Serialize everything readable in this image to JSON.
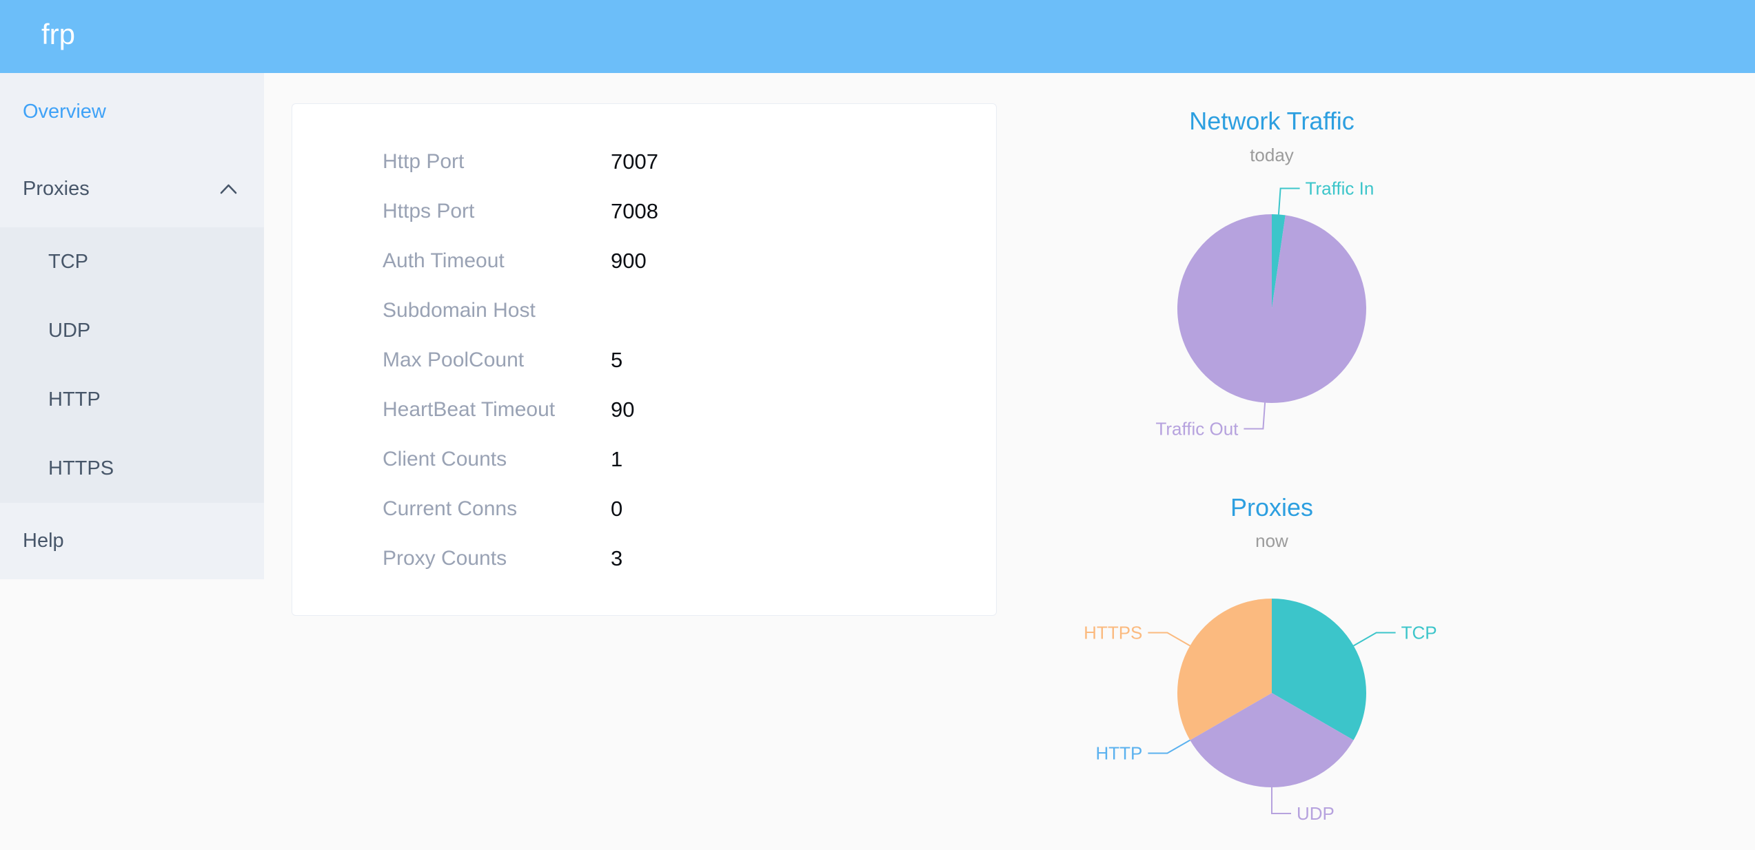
{
  "header": {
    "logo": "frp"
  },
  "colors": {
    "header_bg": "#6cbef9",
    "sidebar_active": "#3fa2f7",
    "chart_title_blue": "#2d9fe0",
    "teal": "#3cc5ca",
    "purple": "#b6a2de",
    "blue": "#5ab1ef",
    "orange": "#fbba7f"
  },
  "sidebar": {
    "overview": "Overview",
    "proxies": "Proxies",
    "proxy_types": [
      "TCP",
      "UDP",
      "HTTP",
      "HTTPS"
    ],
    "help": "Help"
  },
  "overview": {
    "rows": [
      {
        "label": "Http Port",
        "value": "7007"
      },
      {
        "label": "Https Port",
        "value": "7008"
      },
      {
        "label": "Auth Timeout",
        "value": "900"
      },
      {
        "label": "Subdomain Host",
        "value": ""
      },
      {
        "label": "Max PoolCount",
        "value": "5"
      },
      {
        "label": "HeartBeat Timeout",
        "value": "90"
      },
      {
        "label": "Client Counts",
        "value": "1"
      },
      {
        "label": "Current Conns",
        "value": "0"
      },
      {
        "label": "Proxy Counts",
        "value": "3"
      }
    ]
  },
  "chart_data": [
    {
      "type": "pie",
      "title": "Network Traffic",
      "subtitle": "today",
      "legend_position": "none",
      "labels": "callout",
      "unit": "percent (estimated from arc angles)",
      "series": [
        {
          "name": "Traffic In",
          "value": 2.3,
          "color": "#3cc5ca"
        },
        {
          "name": "Traffic Out",
          "value": 97.7,
          "color": "#b6a2de"
        }
      ]
    },
    {
      "type": "pie",
      "title": "Proxies",
      "subtitle": "now",
      "legend_position": "none",
      "labels": "callout",
      "unit": "proxy count",
      "series": [
        {
          "name": "TCP",
          "value": 1,
          "color": "#3cc5ca"
        },
        {
          "name": "UDP",
          "value": 1,
          "color": "#b6a2de"
        },
        {
          "name": "HTTP",
          "value": 0,
          "color": "#5ab1ef"
        },
        {
          "name": "HTTPS",
          "value": 1,
          "color": "#fbba7f"
        }
      ]
    }
  ]
}
